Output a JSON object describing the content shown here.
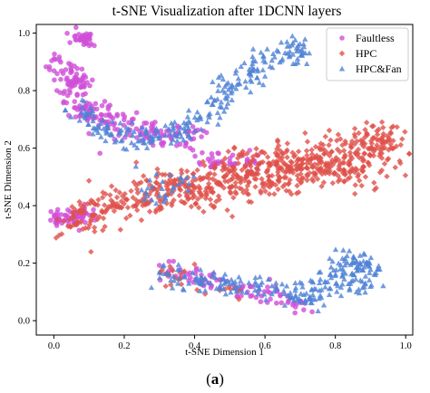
{
  "chart_data": {
    "type": "scatter",
    "title": "t-SNE Visualization after 1DCNN layers",
    "xlabel": "t-SNE Dimension 1",
    "ylabel": "t-SNE Dimension 2",
    "xlim": [
      -0.05,
      1.02
    ],
    "ylim": [
      -0.05,
      1.03
    ],
    "xticks": [
      0.0,
      0.2,
      0.4,
      0.6,
      0.8,
      1.0
    ],
    "yticks": [
      0.0,
      0.2,
      0.4,
      0.6,
      0.8,
      1.0
    ],
    "xtick_labels": [
      "0.0",
      "0.2",
      "0.4",
      "0.6",
      "0.8",
      "1.0"
    ],
    "ytick_labels": [
      "0.0",
      "0.2",
      "0.4",
      "0.6",
      "0.8",
      "1.0"
    ],
    "grid": false,
    "legend_position": "top-right",
    "caption_prefix": "(",
    "caption_letter": "a",
    "caption_suffix": ")",
    "series": [
      {
        "name": "Faultless",
        "marker": "circle",
        "color": "#cf4fd8",
        "clusters": [
          {
            "path": [
              [
                0.07,
                0.99
              ],
              [
                0.09,
                0.98
              ],
              [
                0.1,
                0.97
              ]
            ],
            "spread": 0.012,
            "count": 40
          },
          {
            "path": [
              [
                0.0,
                0.9
              ],
              [
                0.04,
                0.86
              ],
              [
                0.06,
                0.82
              ],
              [
                0.08,
                0.76
              ],
              [
                0.12,
                0.72
              ],
              [
                0.18,
                0.68
              ],
              [
                0.25,
                0.66
              ],
              [
                0.33,
                0.64
              ],
              [
                0.4,
                0.63
              ]
            ],
            "spread": 0.025,
            "count": 230
          },
          {
            "path": [
              [
                0.0,
                0.35
              ],
              [
                0.05,
                0.36
              ],
              [
                0.1,
                0.37
              ]
            ],
            "spread": 0.015,
            "count": 70
          },
          {
            "path": [
              [
                0.4,
                0.55
              ],
              [
                0.5,
                0.55
              ],
              [
                0.58,
                0.56
              ]
            ],
            "spread": 0.015,
            "count": 40
          },
          {
            "path": [
              [
                0.3,
                0.19
              ],
              [
                0.35,
                0.17
              ],
              [
                0.42,
                0.14
              ],
              [
                0.5,
                0.12
              ],
              [
                0.58,
                0.1
              ],
              [
                0.66,
                0.07
              ],
              [
                0.72,
                0.05
              ]
            ],
            "spread": 0.02,
            "count": 90
          }
        ]
      },
      {
        "name": "HPC",
        "marker": "diamond",
        "color": "#e0504a",
        "clusters": [
          {
            "path": [
              [
                0.05,
                0.34
              ],
              [
                0.12,
                0.38
              ],
              [
                0.2,
                0.42
              ],
              [
                0.28,
                0.45
              ],
              [
                0.36,
                0.47
              ],
              [
                0.44,
                0.5
              ],
              [
                0.52,
                0.52
              ],
              [
                0.6,
                0.55
              ],
              [
                0.68,
                0.56
              ],
              [
                0.76,
                0.58
              ],
              [
                0.84,
                0.6
              ],
              [
                0.92,
                0.61
              ],
              [
                0.98,
                0.62
              ]
            ],
            "spread": 0.035,
            "count": 520
          },
          {
            "path": [
              [
                0.35,
                0.42
              ],
              [
                0.45,
                0.45
              ],
              [
                0.55,
                0.48
              ],
              [
                0.65,
                0.5
              ],
              [
                0.75,
                0.52
              ],
              [
                0.85,
                0.54
              ],
              [
                0.95,
                0.5
              ]
            ],
            "spread": 0.03,
            "count": 260
          },
          {
            "path": [
              [
                0.3,
                0.18
              ],
              [
                0.36,
                0.15
              ],
              [
                0.44,
                0.12
              ],
              [
                0.52,
                0.1
              ]
            ],
            "spread": 0.02,
            "count": 25
          }
        ]
      },
      {
        "name": "HPC&Fan",
        "marker": "triangle",
        "color": "#4f82d6",
        "clusters": [
          {
            "path": [
              [
                0.06,
                0.74
              ],
              [
                0.12,
                0.68
              ],
              [
                0.2,
                0.64
              ],
              [
                0.28,
                0.63
              ],
              [
                0.36,
                0.66
              ],
              [
                0.44,
                0.72
              ],
              [
                0.5,
                0.8
              ],
              [
                0.56,
                0.87
              ],
              [
                0.62,
                0.91
              ],
              [
                0.68,
                0.94
              ],
              [
                0.72,
                0.95
              ]
            ],
            "spread": 0.022,
            "count": 260
          },
          {
            "path": [
              [
                0.3,
                0.16
              ],
              [
                0.36,
                0.15
              ],
              [
                0.42,
                0.14
              ],
              [
                0.48,
                0.13
              ],
              [
                0.56,
                0.12
              ],
              [
                0.64,
                0.11
              ],
              [
                0.7,
                0.08
              ],
              [
                0.74,
                0.1
              ],
              [
                0.78,
                0.15
              ],
              [
                0.82,
                0.2
              ],
              [
                0.86,
                0.21
              ],
              [
                0.9,
                0.2
              ],
              [
                0.88,
                0.14
              ],
              [
                0.84,
                0.12
              ]
            ],
            "spread": 0.022,
            "count": 260
          },
          {
            "path": [
              [
                0.24,
                0.45
              ],
              [
                0.3,
                0.46
              ],
              [
                0.38,
                0.48
              ]
            ],
            "spread": 0.025,
            "count": 30
          }
        ]
      }
    ]
  }
}
